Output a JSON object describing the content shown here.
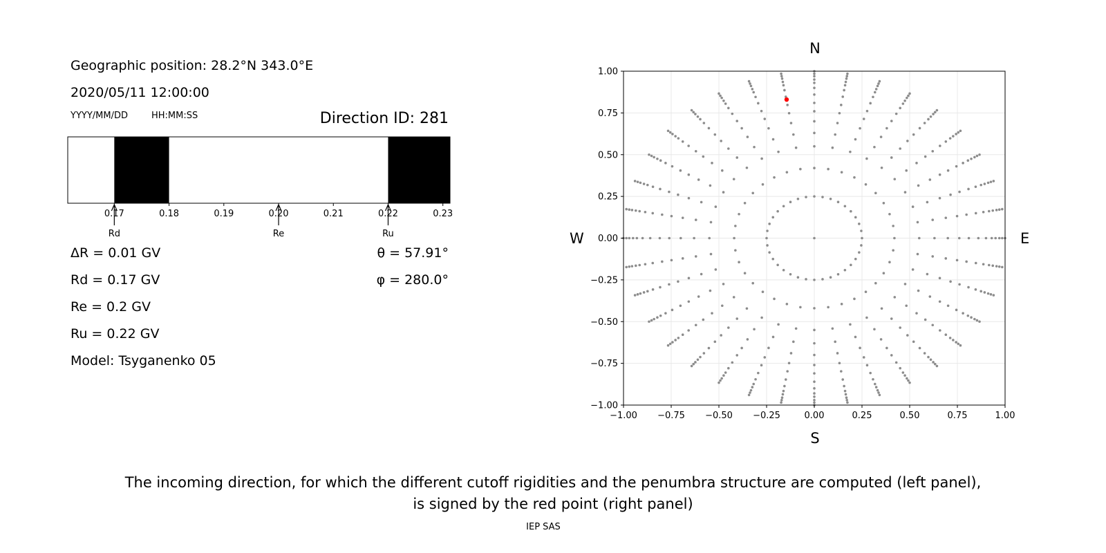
{
  "header": {
    "position": "Geographic position: 28.2°N 343.0°E",
    "datetime": "2020/05/11 12:00:00",
    "date_format": "YYYY/MM/DD",
    "time_format": "HH:MM:SS",
    "direction_id": "Direction ID: 281"
  },
  "values": {
    "delta_r": "ΔR = 0.01 GV",
    "rd": "Rd = 0.17 GV",
    "re": "Re = 0.2 GV",
    "ru": "Ru = 0.22 GV",
    "model": "Model: Tsyganenko 05",
    "theta": "θ = 57.91°",
    "phi": "φ = 280.0°"
  },
  "sky_map": {
    "north": "N",
    "south": "S",
    "west": "W",
    "east": "E"
  },
  "caption": {
    "line1": "The incoming direction, for which the different cutoff rigidities and the penumbra structure are computed (left panel),",
    "line2": "is signed by the red point (right panel)",
    "credit": "IEP SAS"
  },
  "chart_data": [
    {
      "type": "bar",
      "xlim": [
        0.1615,
        0.2313
      ],
      "x_ticks": [
        0.17,
        0.18,
        0.19,
        0.2,
        0.21,
        0.22,
        0.23
      ],
      "x_tick_labels": [
        "0.17",
        "0.18",
        "0.19",
        "0.20",
        "0.21",
        "0.22",
        "0.23"
      ],
      "forbidden_bands": [
        [
          0.17,
          0.18
        ],
        [
          0.22,
          0.2313
        ]
      ],
      "markers": [
        {
          "label": "Rd",
          "x": 0.17
        },
        {
          "label": "Re",
          "x": 0.2
        },
        {
          "label": "Ru",
          "x": 0.22
        }
      ],
      "colors": {
        "forbidden": "#000000",
        "allowed": "#ffffff"
      }
    },
    {
      "type": "scatter",
      "xlim": [
        -1.0,
        1.0
      ],
      "ylim": [
        -1.0,
        1.0
      ],
      "x_ticks": [
        "−1.00",
        "−0.75",
        "−0.50",
        "−0.25",
        "0.00",
        "0.25",
        "0.50",
        "0.75",
        "1.00"
      ],
      "y_ticks": [
        "1.00",
        "0.75",
        "0.50",
        "0.25",
        "0.00",
        "−0.25",
        "−0.50",
        "−0.75",
        "−1.00"
      ],
      "grid": true,
      "directions": {
        "zenith": true,
        "ring_radii": [
          0.25,
          0.42,
          0.55,
          0.63,
          0.7,
          0.76,
          0.81,
          0.86,
          0.9,
          0.93,
          0.95,
          0.97,
          0.985,
          1.0
        ],
        "azimuth_count": 36,
        "azimuth_step_deg": 10
      },
      "highlight_point": {
        "x": -0.145,
        "y": 0.83
      },
      "colors": {
        "points": "#8c8c8c",
        "highlight": "#ff0000",
        "grid": "#e8e8e8"
      }
    }
  ]
}
